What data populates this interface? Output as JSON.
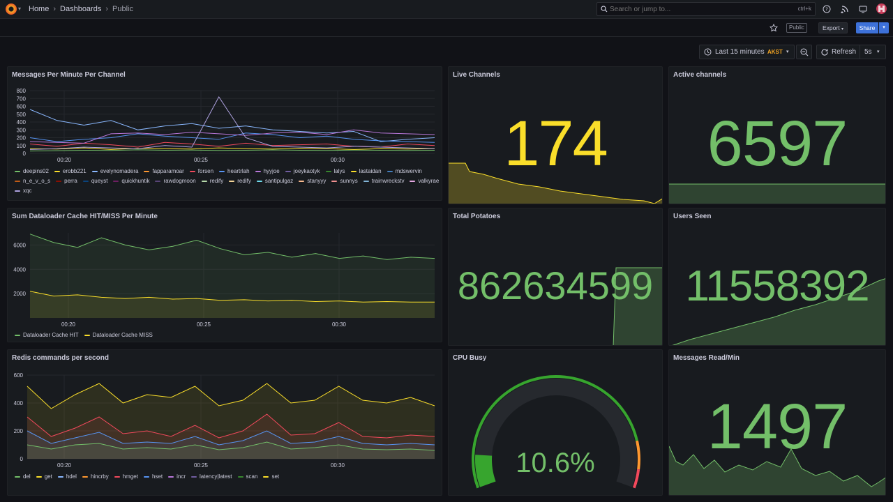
{
  "topbar": {
    "breadcrumbs": [
      "Home",
      "Dashboards",
      "Public"
    ],
    "search_placeholder": "Search or jump to...",
    "search_shortcut": "ctrl+k"
  },
  "subbar": {
    "public_tag": "Public",
    "export_label": "Export",
    "share_label": "Share"
  },
  "time": {
    "range_label": "Last 15 minutes",
    "timezone": "AKST",
    "refresh_label": "Refresh",
    "refresh_interval": "5s"
  },
  "colors": {
    "green": "#73bf69",
    "yellow": "#fade2a",
    "blue": "#5794f2",
    "orange": "#ff9830",
    "red": "#f2495c",
    "purple": "#b877d9",
    "darkgreen": "#37872d",
    "lightblue": "#8ab8ff"
  },
  "panels": {
    "messages": {
      "title": "Messages Per Minute Per Channel",
      "legend": [
        {
          "name": "deepins02",
          "color": "#73bf69"
        },
        {
          "name": "erobb221",
          "color": "#fade2a"
        },
        {
          "name": "evelynomadera",
          "color": "#8ab8ff"
        },
        {
          "name": "fapparamoar",
          "color": "#ff9830"
        },
        {
          "name": "forsen",
          "color": "#f2495c"
        },
        {
          "name": "heartrlah",
          "color": "#5794f2"
        },
        {
          "name": "hyyjoe",
          "color": "#b877d9"
        },
        {
          "name": "joeykaotyk",
          "color": "#705da0"
        },
        {
          "name": "lalys",
          "color": "#37872d"
        },
        {
          "name": "lastaidan",
          "color": "#fade2a"
        },
        {
          "name": "mdswervin",
          "color": "#447ebc"
        },
        {
          "name": "n_e_v_o_s",
          "color": "#c15c17"
        },
        {
          "name": "perra",
          "color": "#890f02"
        },
        {
          "name": "queyst",
          "color": "#0a437c"
        },
        {
          "name": "quickhuntik",
          "color": "#6d1f62"
        },
        {
          "name": "rawdogmoon",
          "color": "#584477"
        },
        {
          "name": "redify",
          "color": "#b7dbab"
        },
        {
          "name": "redify",
          "color": "#f4d598"
        },
        {
          "name": "santipulgaz",
          "color": "#70dbed"
        },
        {
          "name": "stanyyy",
          "color": "#f9ba8f"
        },
        {
          "name": "sunnys",
          "color": "#f29191"
        },
        {
          "name": "trainwreckstv",
          "color": "#82b5d8"
        },
        {
          "name": "valkyrae",
          "color": "#e5a8e2"
        },
        {
          "name": "xqc",
          "color": "#aea2e0"
        }
      ]
    },
    "dataloader": {
      "title": "Sum Dataloader Cache HIT/MISS Per Minute",
      "legend": [
        {
          "name": "Dataloader Cache HIT",
          "color": "#73bf69"
        },
        {
          "name": "Dataloader Cache MISS",
          "color": "#fade2a"
        }
      ]
    },
    "redis": {
      "title": "Redis commands per second",
      "legend": [
        {
          "name": "del",
          "color": "#73bf69"
        },
        {
          "name": "get",
          "color": "#fade2a"
        },
        {
          "name": "hdel",
          "color": "#8ab8ff"
        },
        {
          "name": "hincrby",
          "color": "#ff9830"
        },
        {
          "name": "hmget",
          "color": "#f2495c"
        },
        {
          "name": "hset",
          "color": "#5794f2"
        },
        {
          "name": "incr",
          "color": "#b877d9"
        },
        {
          "name": "latency|latest",
          "color": "#705da0"
        },
        {
          "name": "scan",
          "color": "#37872d"
        },
        {
          "name": "set",
          "color": "#fade2a"
        }
      ]
    },
    "live_channels": {
      "title": "Live Channels",
      "value": "174",
      "color": "#fade2a"
    },
    "active_channels": {
      "title": "Active channels",
      "value": "6597",
      "color": "#73bf69"
    },
    "total_potatoes": {
      "title": "Total Potatoes",
      "value": "862634599",
      "color": "#73bf69"
    },
    "users_seen": {
      "title": "Users Seen",
      "value": "11558392",
      "color": "#73bf69"
    },
    "cpu_busy": {
      "title": "CPU Busy",
      "value": "10.6%",
      "percent": 10.6,
      "color": "#73bf69"
    },
    "messages_read": {
      "title": "Messages Read/Min",
      "value": "1497",
      "color": "#73bf69"
    }
  },
  "chart_data": [
    {
      "type": "line",
      "title": "Messages Per Minute Per Channel",
      "x_ticks": [
        "00:20",
        "00:25",
        "00:30"
      ],
      "y_ticks": [
        0,
        100,
        200,
        300,
        400,
        500,
        600,
        700,
        800
      ],
      "ylim": [
        0,
        800
      ],
      "series": [
        {
          "name": "deepins02",
          "values": [
            30,
            35,
            40,
            38,
            45,
            40,
            42,
            38,
            40,
            44,
            40,
            38,
            42,
            40,
            38,
            40
          ]
        },
        {
          "name": "erobb221",
          "values": [
            60,
            55,
            70,
            50,
            65,
            60,
            55,
            70,
            60,
            55,
            65,
            60,
            50,
            60,
            55,
            60
          ]
        },
        {
          "name": "evelynomadera",
          "values": [
            560,
            420,
            360,
            420,
            300,
            350,
            380,
            320,
            350,
            300,
            280,
            260,
            280,
            150,
            180,
            200
          ]
        },
        {
          "name": "forsen",
          "values": [
            120,
            90,
            130,
            110,
            80,
            140,
            120,
            90,
            130,
            100,
            110,
            120,
            90,
            80,
            120,
            100
          ]
        },
        {
          "name": "heartrlah",
          "values": [
            200,
            150,
            180,
            200,
            250,
            220,
            200,
            180,
            260,
            240,
            200,
            220,
            180,
            160,
            150,
            140
          ]
        },
        {
          "name": "hyyjoe",
          "values": [
            150,
            140,
            130,
            250,
            260,
            240,
            270,
            250,
            230,
            260,
            270,
            240,
            300,
            260,
            250,
            240
          ]
        },
        {
          "name": "xqc",
          "values": [
            50,
            60,
            80,
            70,
            60,
            100,
            80,
            720,
            200,
            90,
            80,
            70,
            90,
            80,
            70,
            60
          ]
        }
      ]
    },
    {
      "type": "area",
      "title": "Sum Dataloader Cache HIT/MISS Per Minute",
      "x_ticks": [
        "00:20",
        "00:25",
        "00:30"
      ],
      "y_ticks": [
        2000,
        4000,
        6000
      ],
      "ylim": [
        0,
        7000
      ],
      "series": [
        {
          "name": "Dataloader Cache HIT",
          "values": [
            6900,
            6200,
            5800,
            6600,
            6000,
            5600,
            5900,
            6400,
            5700,
            5200,
            5400,
            5000,
            5300,
            4900,
            5100,
            4800,
            5000,
            4900
          ]
        },
        {
          "name": "Dataloader Cache MISS",
          "values": [
            2200,
            1800,
            1900,
            1700,
            1600,
            1700,
            1550,
            1600,
            1450,
            1500,
            1400,
            1450,
            1350,
            1400,
            1300,
            1350,
            1300,
            1300
          ]
        }
      ]
    },
    {
      "type": "area",
      "title": "Redis commands per second",
      "x_ticks": [
        "00:20",
        "00:25",
        "00:30"
      ],
      "y_ticks": [
        0,
        200,
        400,
        600
      ],
      "ylim": [
        0,
        600
      ],
      "series": [
        {
          "name": "get",
          "values": [
            520,
            360,
            460,
            540,
            400,
            460,
            440,
            520,
            380,
            420,
            540,
            400,
            420,
            520,
            420,
            400,
            440,
            380
          ]
        },
        {
          "name": "hmget",
          "values": [
            300,
            160,
            220,
            300,
            180,
            200,
            160,
            240,
            150,
            200,
            320,
            170,
            180,
            260,
            160,
            150,
            170,
            160
          ]
        },
        {
          "name": "hset",
          "values": [
            200,
            110,
            150,
            190,
            110,
            120,
            110,
            160,
            100,
            130,
            200,
            110,
            120,
            160,
            110,
            100,
            110,
            100
          ]
        },
        {
          "name": "del",
          "values": [
            100,
            70,
            100,
            110,
            70,
            80,
            70,
            100,
            65,
            80,
            120,
            70,
            80,
            100,
            70,
            65,
            70,
            60
          ]
        }
      ]
    }
  ]
}
